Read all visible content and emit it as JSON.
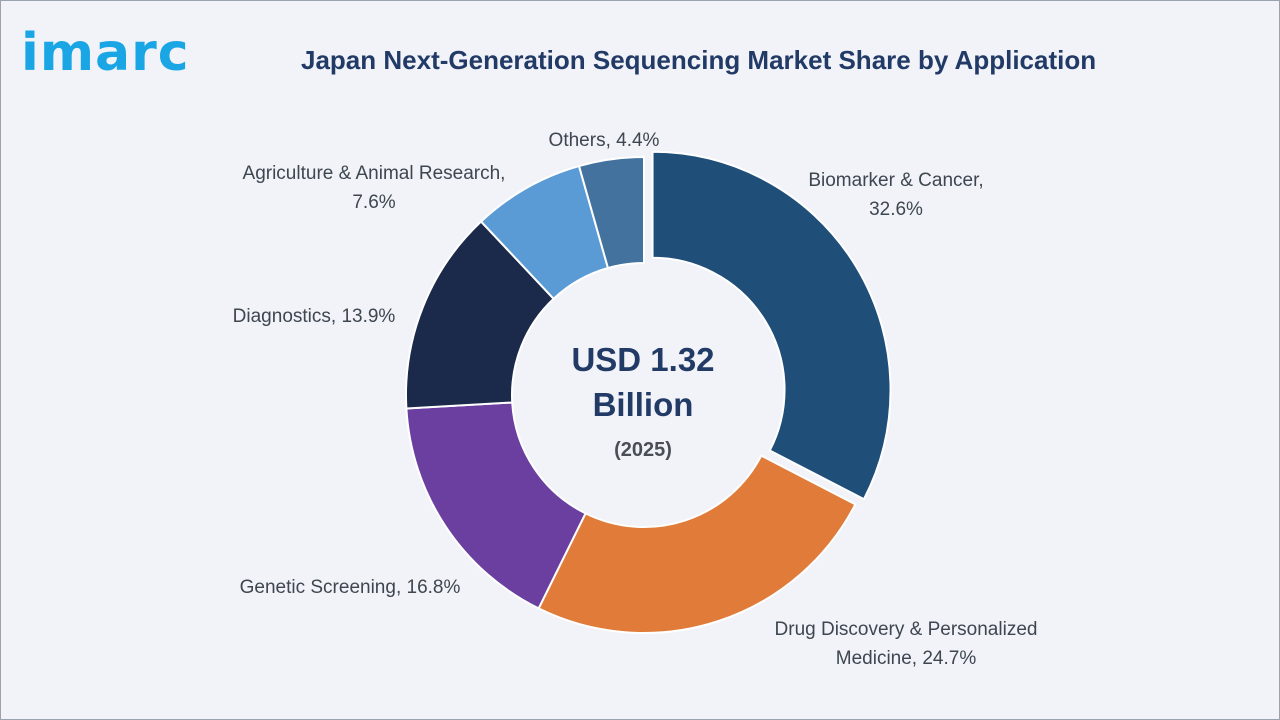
{
  "brand": {
    "logo_text": "imarc",
    "logo_color": "#1aa6e4"
  },
  "chart_data": {
    "type": "pie",
    "variant": "donut",
    "title": "Japan Next-Generation Sequencing Market Share by Application",
    "center_value": "USD 1.32",
    "center_unit": "Billion",
    "center_year": "(2025)",
    "slices": [
      {
        "label_lines": [
          "Biomarker & Cancer,",
          "32.6%"
        ],
        "category": "Biomarker & Cancer",
        "value": 32.6,
        "color": "#1f4e79",
        "exploded": true
      },
      {
        "label_lines": [
          "Drug Discovery & Personalized",
          "Medicine, 24.7%"
        ],
        "category": "Drug Discovery & Personalized Medicine",
        "value": 24.7,
        "color": "#e07b39",
        "exploded": false
      },
      {
        "label_lines": [
          "Genetic Screening, 16.8%"
        ],
        "category": "Genetic Screening",
        "value": 16.8,
        "color": "#6a3fa0",
        "exploded": false
      },
      {
        "label_lines": [
          "Diagnostics, 13.9%"
        ],
        "category": "Diagnostics",
        "value": 13.9,
        "color": "#1b2a4a",
        "exploded": false
      },
      {
        "label_lines": [
          "Agriculture & Animal Research,",
          "7.6%"
        ],
        "category": "Agriculture & Animal Research",
        "value": 7.6,
        "color": "#5b9bd5",
        "exploded": false
      },
      {
        "label_lines": [
          "Others, 4.4%"
        ],
        "category": "Others",
        "value": 4.4,
        "color": "#44729f",
        "exploded": false
      }
    ]
  }
}
